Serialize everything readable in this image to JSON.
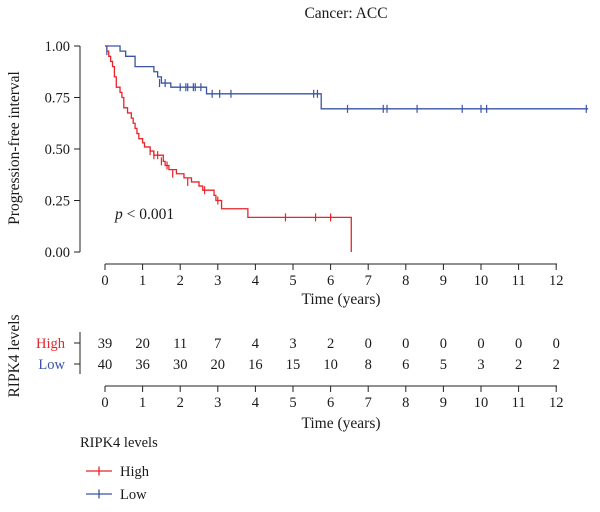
{
  "chart_data": {
    "type": "line",
    "title": "Cancer: ACC",
    "ylabel": "Progression-free interval",
    "xlabel": "Time (years)",
    "xlim": [
      -0.6,
      13.0
    ],
    "ylim": [
      0,
      1
    ],
    "xticks": [
      0,
      1,
      2,
      3,
      4,
      5,
      6,
      7,
      8,
      9,
      10,
      11,
      12
    ],
    "yticks": [
      "0.00",
      "0.25",
      "0.50",
      "0.75",
      "1.00"
    ],
    "annotation": {
      "p_italic": "p",
      "rest": " < 0.001"
    },
    "grid": false,
    "series": [
      {
        "name": "High",
        "color": "#e8242a",
        "steps": [
          [
            0,
            1.0
          ],
          [
            0.05,
            0.975
          ],
          [
            0.1,
            0.95
          ],
          [
            0.15,
            0.925
          ],
          [
            0.2,
            0.9
          ],
          [
            0.25,
            0.85
          ],
          [
            0.3,
            0.8
          ],
          [
            0.4,
            0.775
          ],
          [
            0.45,
            0.75
          ],
          [
            0.5,
            0.7
          ],
          [
            0.6,
            0.675
          ],
          [
            0.7,
            0.65
          ],
          [
            0.75,
            0.625
          ],
          [
            0.8,
            0.6
          ],
          [
            0.85,
            0.575
          ],
          [
            0.9,
            0.55
          ],
          [
            1.0,
            0.53
          ],
          [
            1.05,
            0.51
          ],
          [
            1.2,
            0.49
          ],
          [
            1.3,
            0.47
          ],
          [
            1.55,
            0.44
          ],
          [
            1.6,
            0.42
          ],
          [
            1.7,
            0.4
          ],
          [
            1.9,
            0.38
          ],
          [
            2.1,
            0.36
          ],
          [
            2.3,
            0.34
          ],
          [
            2.5,
            0.32
          ],
          [
            2.6,
            0.3
          ],
          [
            2.9,
            0.275
          ],
          [
            2.95,
            0.25
          ],
          [
            3.1,
            0.21
          ],
          [
            3.8,
            0.168
          ],
          [
            6.55,
            0.0
          ]
        ],
        "end": 6.55,
        "censors": [
          [
            1.2,
            0.49
          ],
          [
            1.3,
            0.47
          ],
          [
            1.4,
            0.47
          ],
          [
            1.5,
            0.44
          ],
          [
            1.65,
            0.42
          ],
          [
            1.8,
            0.38
          ],
          [
            2.2,
            0.34
          ],
          [
            2.65,
            0.3
          ],
          [
            3.0,
            0.25
          ],
          [
            4.8,
            0.168
          ],
          [
            5.6,
            0.168
          ],
          [
            6.0,
            0.168
          ]
        ]
      },
      {
        "name": "Low",
        "color": "#3a54a4",
        "steps": [
          [
            0,
            1.0
          ],
          [
            0.4,
            0.975
          ],
          [
            0.55,
            0.95
          ],
          [
            0.8,
            0.9
          ],
          [
            1.3,
            0.875
          ],
          [
            1.4,
            0.85
          ],
          [
            1.5,
            0.82
          ],
          [
            1.75,
            0.8
          ],
          [
            2.7,
            0.768
          ],
          [
            5.75,
            0.695
          ]
        ],
        "end": 12.85,
        "censors": [
          [
            0.05,
            0.975
          ],
          [
            1.45,
            0.82
          ],
          [
            1.6,
            0.82
          ],
          [
            2.0,
            0.8
          ],
          [
            2.15,
            0.8
          ],
          [
            2.2,
            0.8
          ],
          [
            2.35,
            0.8
          ],
          [
            2.4,
            0.8
          ],
          [
            2.55,
            0.8
          ],
          [
            2.85,
            0.768
          ],
          [
            3.05,
            0.768
          ],
          [
            3.35,
            0.768
          ],
          [
            5.55,
            0.768
          ],
          [
            5.65,
            0.768
          ],
          [
            6.45,
            0.695
          ],
          [
            7.4,
            0.695
          ],
          [
            7.5,
            0.695
          ],
          [
            8.3,
            0.695
          ],
          [
            9.5,
            0.695
          ],
          [
            10.0,
            0.695
          ],
          [
            10.15,
            0.695
          ],
          [
            12.8,
            0.695
          ]
        ]
      }
    ]
  },
  "risk_table": {
    "ylabel": "RIPK4 levels",
    "xlabel": "Time (years)",
    "times": [
      0,
      1,
      2,
      3,
      4,
      5,
      6,
      7,
      8,
      9,
      10,
      11,
      12
    ],
    "rows": [
      {
        "label": "High",
        "color": "#e8242a",
        "counts": [
          39,
          20,
          11,
          7,
          4,
          3,
          2,
          0,
          0,
          0,
          0,
          0,
          0
        ]
      },
      {
        "label": "Low",
        "color": "#3a54a4",
        "counts": [
          40,
          36,
          30,
          20,
          16,
          15,
          10,
          8,
          6,
          5,
          3,
          2,
          2
        ]
      }
    ]
  },
  "legend": {
    "title": "RIPK4 levels",
    "items": [
      {
        "label": "High",
        "color": "#e8242a"
      },
      {
        "label": "Low",
        "color": "#3a54a4"
      }
    ]
  }
}
